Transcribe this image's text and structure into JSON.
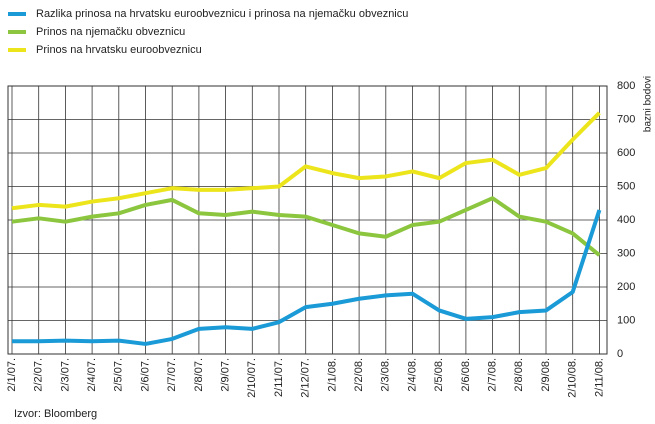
{
  "chart_data": {
    "type": "line",
    "legend": "top-left",
    "grid": true,
    "source": "Izvor: Bloomberg",
    "y_label": "bazni bodovi",
    "categories": [
      "2/1/07.",
      "2/2/07.",
      "2/3/07.",
      "2/4/07.",
      "2/5/07.",
      "2/6/07.",
      "2/7/07.",
      "2/8/07.",
      "2/9/07.",
      "2/10/07.",
      "2/11/07.",
      "2/12/07.",
      "2/1/08.",
      "2/2/08.",
      "2/3/08.",
      "2/4/08.",
      "2/5/08.",
      "2/6/08.",
      "2/7/08.",
      "2/8/08.",
      "2/9/08.",
      "2/10/08.",
      "2/11/08."
    ],
    "series": [
      {
        "name": "Razlika prinosa na hrvatsku euroobveznicu i prinosa na njemačku obveznicu",
        "color": "#1a9ad6",
        "values": [
          38,
          38,
          40,
          38,
          40,
          30,
          45,
          75,
          80,
          75,
          95,
          140,
          150,
          165,
          175,
          180,
          130,
          105,
          110,
          125,
          130,
          185,
          430
        ]
      },
      {
        "name": "Prinos na njemačku obveznicu",
        "color": "#8cc63f",
        "values": [
          395,
          405,
          395,
          410,
          420,
          445,
          460,
          420,
          415,
          425,
          415,
          410,
          385,
          360,
          350,
          385,
          395,
          430,
          465,
          410,
          395,
          360,
          295
        ]
      },
      {
        "name": "Prinos na hrvatsku euroobveznicu",
        "color": "#ede51c",
        "values": [
          435,
          445,
          440,
          455,
          465,
          480,
          495,
          490,
          490,
          495,
          500,
          560,
          540,
          525,
          530,
          545,
          525,
          570,
          580,
          535,
          555,
          640,
          720
        ]
      }
    ],
    "ylim": [
      0,
      800
    ],
    "yticks": [
      0,
      100,
      200,
      300,
      400,
      500,
      600,
      700,
      800
    ]
  }
}
